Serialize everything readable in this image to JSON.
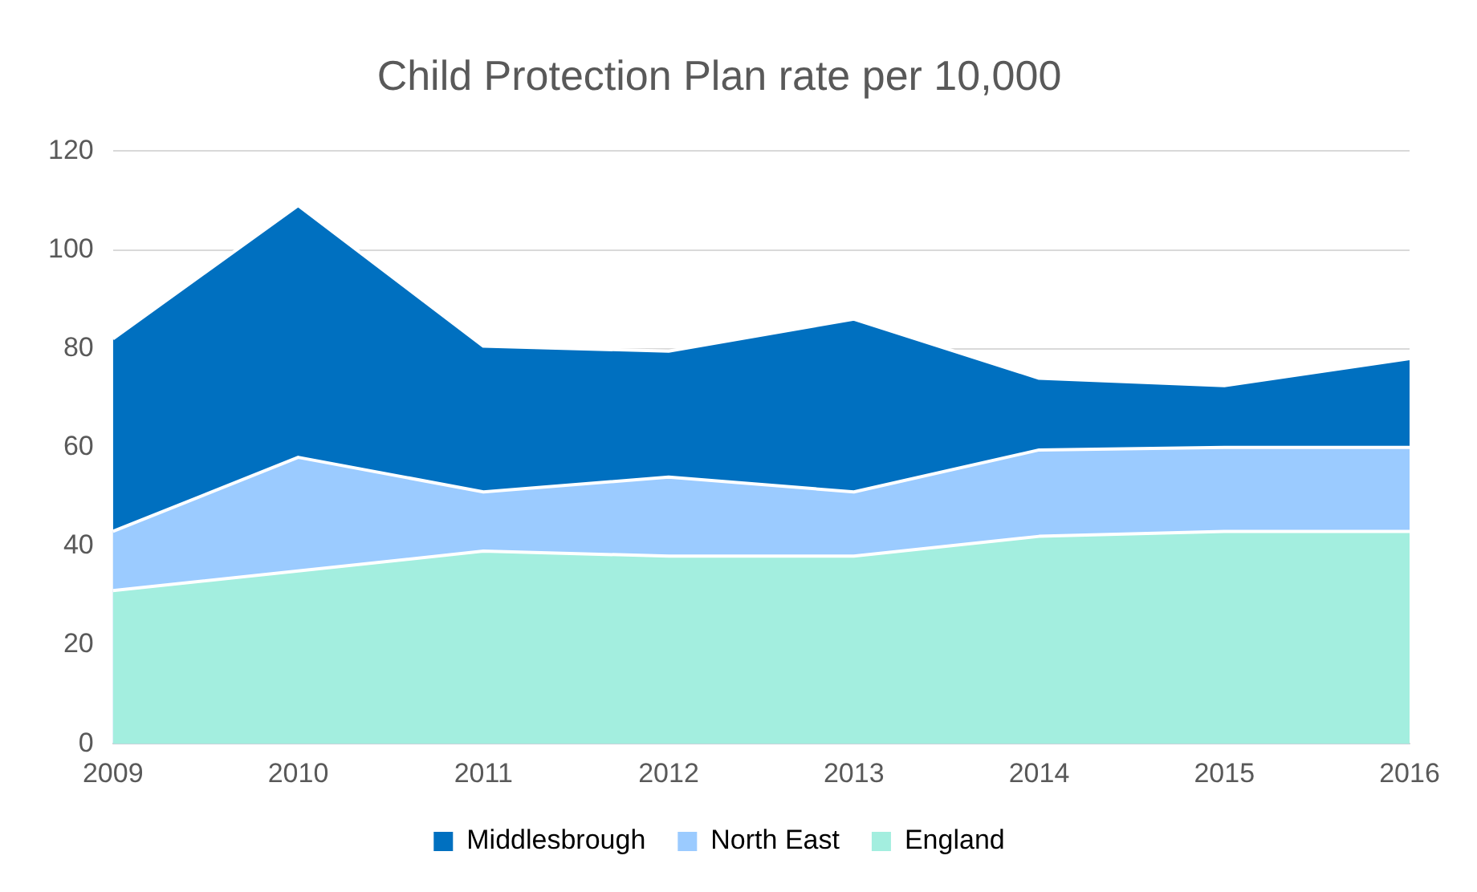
{
  "chart_data": {
    "type": "area",
    "title": "Child Protection Plan rate per 10,000",
    "categories": [
      "2009",
      "2010",
      "2011",
      "2012",
      "2013",
      "2014",
      "2015",
      "2016"
    ],
    "series": [
      {
        "name": "Middlesbrough",
        "color": "#0070c0",
        "values": [
          82,
          109,
          80.5,
          79.5,
          86,
          74,
          72.5,
          78
        ]
      },
      {
        "name": "North East",
        "color": "#9bcbff",
        "values": [
          43,
          58,
          51,
          54,
          51,
          59.5,
          60,
          60
        ]
      },
      {
        "name": "England",
        "color": "#a3eedf",
        "values": [
          31,
          35,
          39,
          38,
          38,
          42,
          43,
          43
        ]
      }
    ],
    "ylim": [
      0,
      120
    ],
    "yticks": [
      0,
      20,
      40,
      60,
      80,
      100,
      120
    ],
    "grid": "y",
    "legend": "bottom"
  }
}
